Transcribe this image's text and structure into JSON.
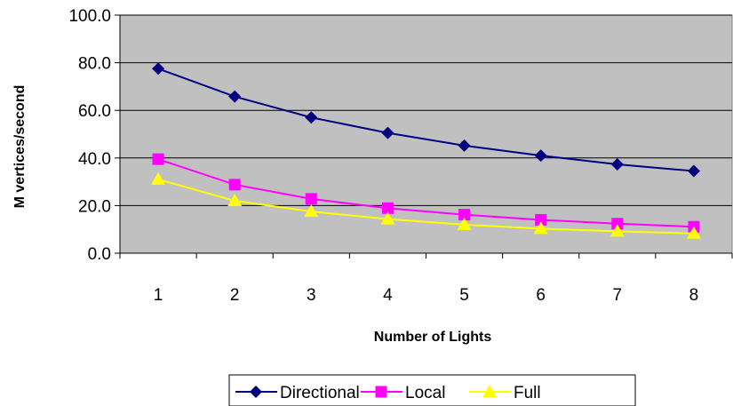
{
  "chart_data": {
    "type": "line",
    "title": "",
    "xlabel": "Number of Lights",
    "ylabel": "M vertices/second",
    "categories": [
      "1",
      "2",
      "3",
      "4",
      "5",
      "6",
      "7",
      "8"
    ],
    "ylim": [
      0,
      100
    ],
    "yticks": [
      "0.0",
      "20.0",
      "40.0",
      "60.0",
      "80.0",
      "100.0"
    ],
    "grid": true,
    "legend_position": "bottom",
    "plot_background": "#c0c0c0",
    "series": [
      {
        "name": "Directional",
        "color": "#000080",
        "marker": "diamond",
        "values": [
          77.5,
          65.8,
          57.0,
          50.5,
          45.2,
          41.0,
          37.3,
          34.5
        ]
      },
      {
        "name": "Local",
        "color": "#ff00ff",
        "marker": "square",
        "values": [
          39.5,
          28.8,
          22.8,
          18.9,
          16.2,
          14.0,
          12.4,
          11.1
        ]
      },
      {
        "name": "Full",
        "color": "#ffff00",
        "marker": "triangle",
        "values": [
          31.0,
          22.0,
          17.5,
          14.3,
          12.0,
          10.3,
          9.2,
          8.3
        ]
      }
    ]
  }
}
